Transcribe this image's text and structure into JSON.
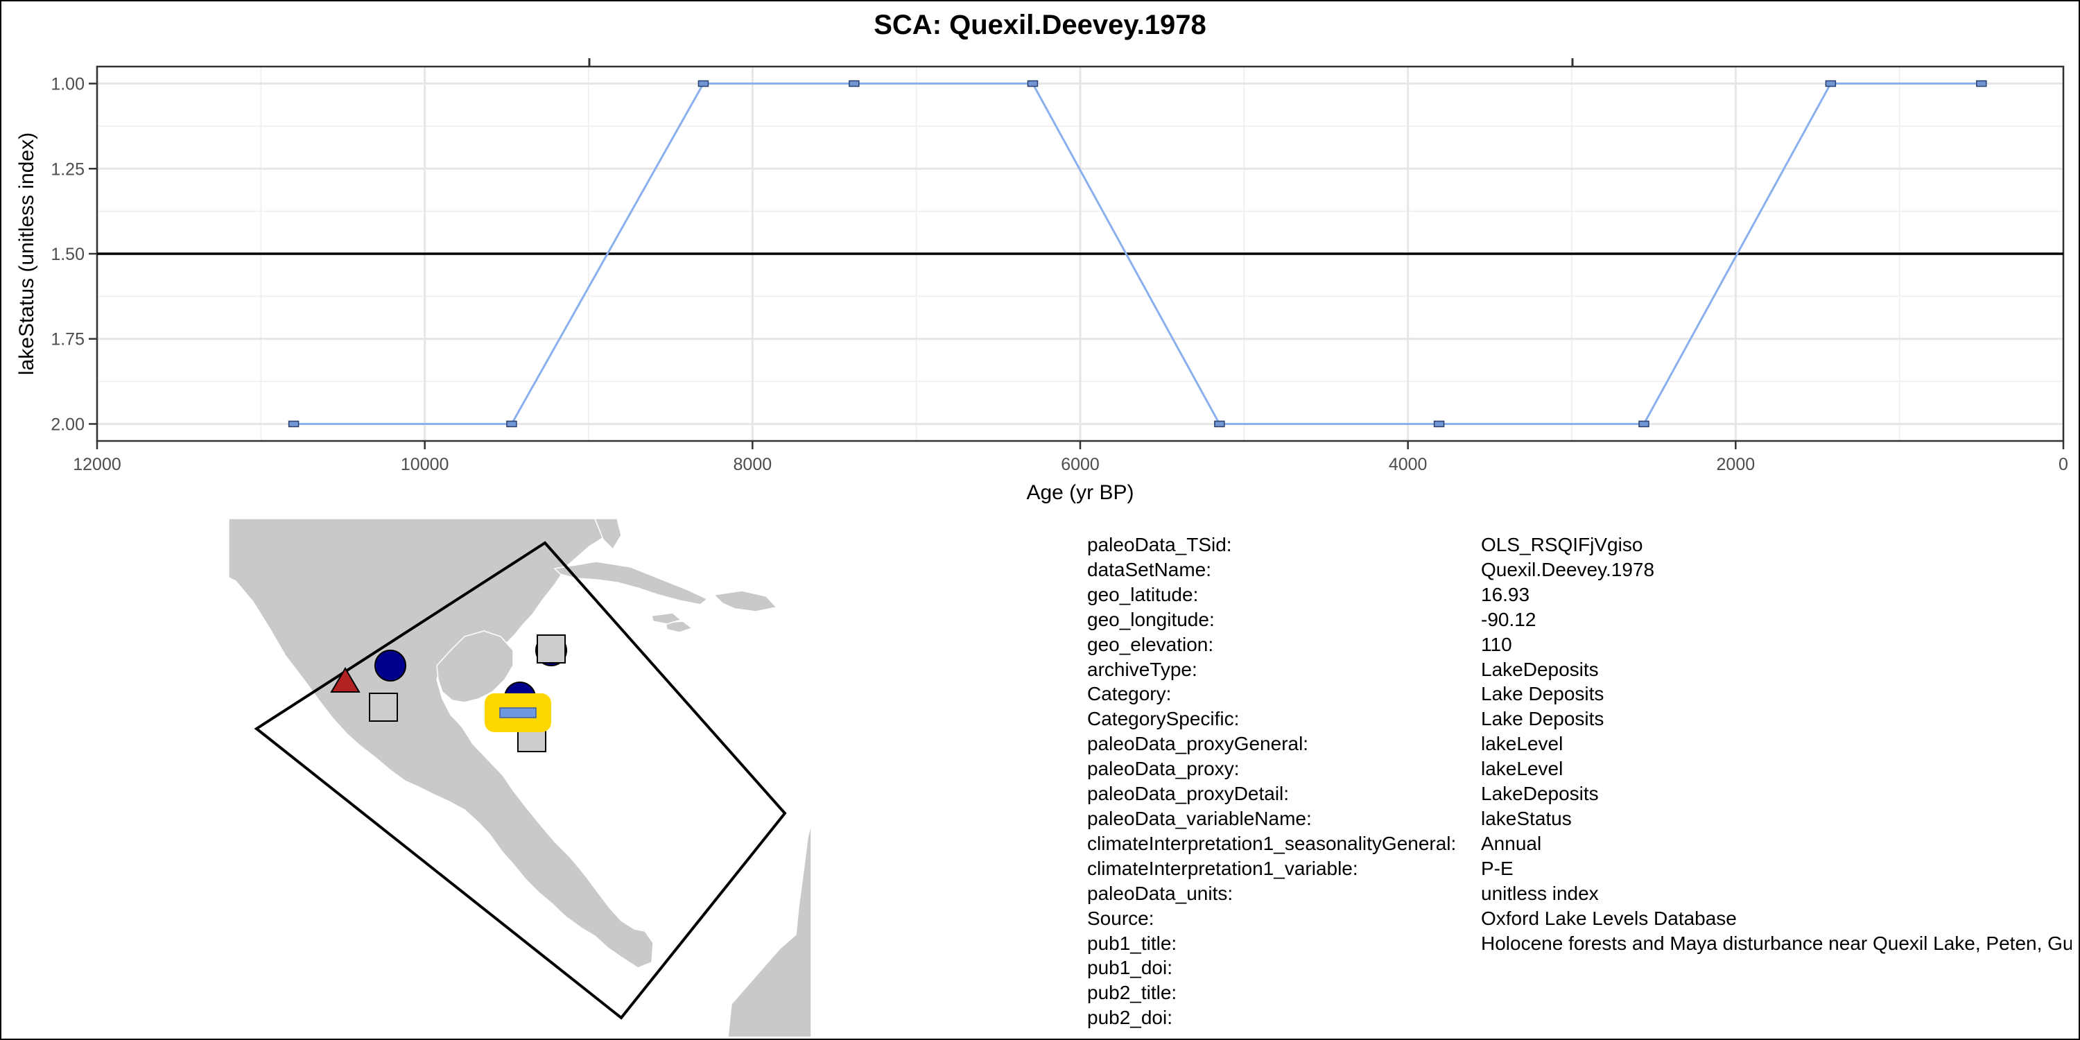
{
  "chart_data": {
    "type": "line",
    "title": "SCA: Quexil.Deevey.1978",
    "xlabel": "Age (yr BP)",
    "ylabel": "lakeStatus (unitless index)",
    "xlim": [
      12000,
      0
    ],
    "ylim": [
      2.05,
      0.95
    ],
    "x_reversed": true,
    "y_reversed": true,
    "xticks": [
      12000,
      10000,
      8000,
      6000,
      4000,
      2000,
      0
    ],
    "xtick_labels": [
      "12000",
      "10000",
      "8000",
      "6000",
      "4000",
      "2000",
      "0"
    ],
    "yticks": [
      1.0,
      1.25,
      1.5,
      1.75,
      2.0
    ],
    "ytick_labels": [
      "1.00",
      "1.25",
      "1.50",
      "1.75",
      "2.00"
    ],
    "reference_line_y": 1.5,
    "grid": true,
    "series": [
      {
        "x": [
          10800,
          9470,
          8300,
          7380,
          6290,
          5150,
          3810,
          2560,
          1420,
          500
        ],
        "y": [
          2,
          2,
          1,
          1,
          1,
          2,
          2,
          2,
          1,
          1
        ],
        "color": "#8ab0ee",
        "marker_color": "#7296d3"
      }
    ]
  },
  "map": {
    "land_color": "#c9c9c9",
    "water_color": "#ffffff",
    "markers": [
      {
        "shape": "triangle",
        "color": "#b22222"
      },
      {
        "shape": "circle",
        "color": "#00008b"
      },
      {
        "shape": "square",
        "color": "#cccccc"
      },
      {
        "shape": "circle",
        "color": "#00008b"
      },
      {
        "shape": "circle",
        "color": "#00008b"
      },
      {
        "shape": "square",
        "color": "#cccccc"
      },
      {
        "shape": "square",
        "color": "#cccccc"
      },
      {
        "shape": "highlight",
        "color": "#ffd700",
        "inner_color": "#6e98e0"
      }
    ]
  },
  "metadata": [
    {
      "key": "paleoData_TSid:",
      "value": "OLS_RSQIFjVgiso"
    },
    {
      "key": "dataSetName:",
      "value": "Quexil.Deevey.1978"
    },
    {
      "key": "geo_latitude:",
      "value": "16.93"
    },
    {
      "key": "geo_longitude:",
      "value": "-90.12"
    },
    {
      "key": "geo_elevation:",
      "value": "110"
    },
    {
      "key": "archiveType:",
      "value": "LakeDeposits"
    },
    {
      "key": "Category:",
      "value": "Lake Deposits"
    },
    {
      "key": "CategorySpecific:",
      "value": "Lake Deposits"
    },
    {
      "key": "paleoData_proxyGeneral:",
      "value": "lakeLevel"
    },
    {
      "key": "paleoData_proxy:",
      "value": "lakeLevel"
    },
    {
      "key": "paleoData_proxyDetail:",
      "value": "LakeDeposits"
    },
    {
      "key": "paleoData_variableName:",
      "value": "lakeStatus"
    },
    {
      "key": "climateInterpretation1_seasonalityGeneral:",
      "value": "Annual"
    },
    {
      "key": "climateInterpretation1_variable:",
      "value": "P-E"
    },
    {
      "key": "paleoData_units:",
      "value": "unitless index"
    },
    {
      "key": "Source:",
      "value": "Oxford Lake Levels Database"
    },
    {
      "key": "pub1_title:",
      "value": "Holocene forests and Maya disturbance near Quexil Lake, Peten, Guatemala"
    },
    {
      "key": "pub1_doi:",
      "value": ""
    },
    {
      "key": "pub2_title:",
      "value": ""
    },
    {
      "key": "pub2_doi:",
      "value": ""
    }
  ]
}
